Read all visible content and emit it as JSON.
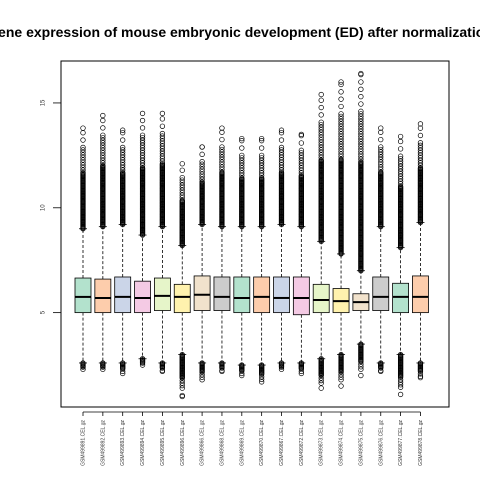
{
  "chart_data": {
    "type": "boxplot",
    "title": "Gene expression of mouse embryonic development (ED) after normalization",
    "xlabel": "",
    "ylabel": "",
    "ylim": [
      0.5,
      17
    ],
    "yticks": [
      5,
      10,
      15
    ],
    "grid": false,
    "legend": "none",
    "categories": [
      "GSM499891.CEL.gz",
      "GSM499892.CEL.gz",
      "GSM499893.CEL.gz",
      "GSM499894.CEL.gz",
      "GSM499895.CEL.gz",
      "GSM499896.CEL.gz",
      "GSM499866.CEL.gz",
      "GSM499868.CEL.gz",
      "GSM499869.CEL.gz",
      "GSM499870.CEL.gz",
      "GSM499867.CEL.gz",
      "GSM499872.CEL.gz",
      "GSM499873.CEL.gz",
      "GSM499874.CEL.gz",
      "GSM499875.CEL.gz",
      "GSM499876.CEL.gz",
      "GSM499877.CEL.gz",
      "GSM499878.CEL.gz"
    ],
    "colors": [
      "#b3e2cd",
      "#fdcdac",
      "#cbd5e8",
      "#f4cae4",
      "#e6f5c9",
      "#fff2ae",
      "#f1e2cc",
      "#cccccc",
      "#b3e2cd",
      "#fdcdac",
      "#cbd5e8",
      "#f4cae4",
      "#e6f5c9",
      "#fff2ae",
      "#f1e2cc",
      "#cccccc",
      "#b3e2cd",
      "#fdcdac"
    ],
    "boxes": [
      {
        "whisker_low": 2.6,
        "q1": 5.0,
        "median": 5.75,
        "q3": 6.65,
        "whisker_high": 9.0,
        "outlier_max": 13.8,
        "outlier_min": 2.3
      },
      {
        "whisker_low": 2.6,
        "q1": 5.0,
        "median": 5.7,
        "q3": 6.6,
        "whisker_high": 9.1,
        "outlier_max": 14.4,
        "outlier_min": 2.3
      },
      {
        "whisker_low": 2.6,
        "q1": 5.0,
        "median": 5.75,
        "q3": 6.7,
        "whisker_high": 9.2,
        "outlier_max": 13.7,
        "outlier_min": 2.1
      },
      {
        "whisker_low": 2.8,
        "q1": 5.0,
        "median": 5.7,
        "q3": 6.5,
        "whisker_high": 8.7,
        "outlier_max": 14.5,
        "outlier_min": 2.5
      },
      {
        "whisker_low": 2.6,
        "q1": 5.1,
        "median": 5.8,
        "q3": 6.65,
        "whisker_high": 9.1,
        "outlier_max": 14.5,
        "outlier_min": 2.2
      },
      {
        "whisker_low": 3.0,
        "q1": 5.0,
        "median": 5.75,
        "q3": 6.35,
        "whisker_high": 8.2,
        "outlier_max": 12.1,
        "outlier_min": 1.0
      },
      {
        "whisker_low": 2.6,
        "q1": 5.1,
        "median": 5.85,
        "q3": 6.75,
        "whisker_high": 9.2,
        "outlier_max": 12.9,
        "outlier_min": 1.8
      },
      {
        "whisker_low": 2.6,
        "q1": 5.1,
        "median": 5.75,
        "q3": 6.7,
        "whisker_high": 9.1,
        "outlier_max": 13.8,
        "outlier_min": 2.2
      },
      {
        "whisker_low": 2.5,
        "q1": 5.0,
        "median": 5.7,
        "q3": 6.7,
        "whisker_high": 9.1,
        "outlier_max": 13.3,
        "outlier_min": 2.0
      },
      {
        "whisker_low": 2.5,
        "q1": 5.0,
        "median": 5.75,
        "q3": 6.7,
        "whisker_high": 9.1,
        "outlier_max": 13.3,
        "outlier_min": 1.7
      },
      {
        "whisker_low": 2.6,
        "q1": 5.0,
        "median": 5.7,
        "q3": 6.7,
        "whisker_high": 9.2,
        "outlier_max": 13.7,
        "outlier_min": 2.3
      },
      {
        "whisker_low": 2.6,
        "q1": 4.9,
        "median": 5.7,
        "q3": 6.7,
        "whisker_high": 9.1,
        "outlier_max": 13.5,
        "outlier_min": 2.1
      },
      {
        "whisker_low": 2.8,
        "q1": 5.0,
        "median": 5.6,
        "q3": 6.35,
        "whisker_high": 8.4,
        "outlier_max": 15.4,
        "outlier_min": 1.4
      },
      {
        "whisker_low": 3.0,
        "q1": 5.0,
        "median": 5.55,
        "q3": 6.15,
        "whisker_high": 7.8,
        "outlier_max": 16.0,
        "outlier_min": 1.5
      },
      {
        "whisker_low": 3.5,
        "q1": 5.1,
        "median": 5.5,
        "q3": 5.9,
        "whisker_high": 7.0,
        "outlier_max": 16.4,
        "outlier_min": 2.0
      },
      {
        "whisker_low": 2.6,
        "q1": 5.1,
        "median": 5.75,
        "q3": 6.7,
        "whisker_high": 9.1,
        "outlier_max": 13.8,
        "outlier_min": 2.2
      },
      {
        "whisker_low": 3.0,
        "q1": 5.0,
        "median": 5.75,
        "q3": 6.4,
        "whisker_high": 8.1,
        "outlier_max": 13.4,
        "outlier_min": 1.1
      },
      {
        "whisker_low": 2.6,
        "q1": 5.0,
        "median": 5.75,
        "q3": 6.75,
        "whisker_high": 9.3,
        "outlier_max": 14.0,
        "outlier_min": 1.9
      }
    ]
  }
}
